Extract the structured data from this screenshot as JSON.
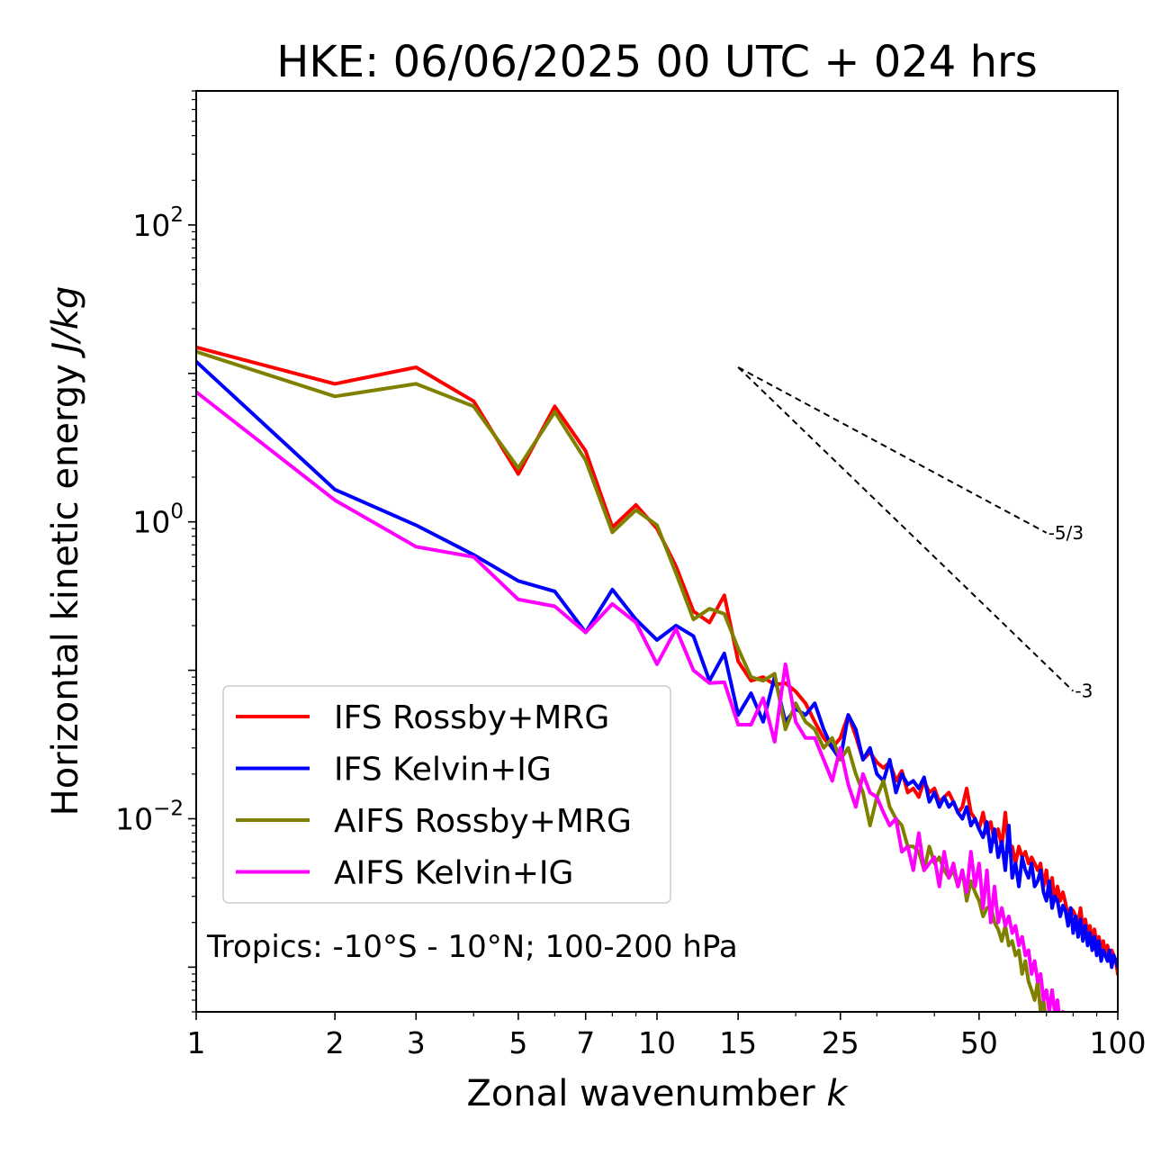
{
  "chart_data": {
    "type": "line",
    "title": "HKE: 06/06/2025 00 UTC + 024 hrs",
    "xlabel": "Zonal wavenumber",
    "xlabel_symbol": "k",
    "ylabel": "Horizontal kinetic energy",
    "ylabel_units": "J/kg",
    "x_scale": "log",
    "y_scale": "log",
    "xlim": [
      1,
      100
    ],
    "ylim": [
      0.0005,
      800
    ],
    "x_ticks": [
      1,
      2,
      3,
      5,
      7,
      10,
      15,
      25,
      50,
      100
    ],
    "x_tick_labels": [
      "1",
      "2",
      "3",
      "5",
      "7",
      "10",
      "15",
      "25",
      "50",
      "100"
    ],
    "y_ticks": [
      {
        "value": 100,
        "base": "10",
        "exp": "2"
      },
      {
        "value": 1,
        "base": "10",
        "exp": "0"
      },
      {
        "value": 0.01,
        "base": "10",
        "exp": "−2"
      }
    ],
    "grid": false,
    "legend_position": "lower-left",
    "annotation": "Tropics: -10°S - 10°N; 100-200 hPa",
    "reference_lines": [
      {
        "label": "-5/3",
        "slope": -1.6667,
        "x_start": 15,
        "y_start": 11,
        "x_end": 70
      },
      {
        "label": "-3",
        "slope": -3,
        "x_start": 15,
        "y_start": 11,
        "x_end": 80
      }
    ],
    "series": [
      {
        "name": "IFS Rossby+MRG",
        "color": "#ff0000",
        "x": [
          1,
          2,
          3,
          4,
          5,
          6,
          7,
          8,
          9,
          10,
          11,
          12,
          13,
          14,
          15,
          16,
          17,
          18,
          19,
          20,
          21,
          22,
          23,
          24,
          25,
          26,
          27,
          28,
          29,
          30,
          31,
          32,
          33,
          34,
          35,
          36,
          37,
          38,
          39,
          40,
          41,
          42,
          43,
          44,
          45,
          46,
          47,
          48,
          49,
          50,
          51,
          52,
          53,
          54,
          55,
          56,
          57,
          58,
          59,
          60,
          61,
          62,
          63,
          64,
          65,
          66,
          67,
          68,
          69,
          70,
          71,
          72,
          73,
          74,
          75,
          76,
          77,
          78,
          79,
          80,
          81,
          82,
          83,
          84,
          85,
          86,
          87,
          88,
          89,
          90,
          91,
          92,
          93,
          94,
          95,
          96,
          97,
          98,
          99,
          100
        ],
        "y": [
          15,
          8.5,
          11,
          6.5,
          2.1,
          6,
          3,
          0.92,
          1.3,
          0.9,
          0.5,
          0.25,
          0.21,
          0.32,
          0.115,
          0.085,
          0.09,
          0.08,
          0.082,
          0.072,
          0.06,
          0.045,
          0.035,
          0.03,
          0.035,
          0.05,
          0.036,
          0.025,
          0.028,
          0.024,
          0.022,
          0.024,
          0.018,
          0.021,
          0.015,
          0.016,
          0.014,
          0.018,
          0.015,
          0.016,
          0.013,
          0.014,
          0.015,
          0.013,
          0.011,
          0.012,
          0.016,
          0.011,
          0.01,
          0.0085,
          0.011,
          0.008,
          0.0095,
          0.007,
          0.0085,
          0.0065,
          0.011,
          0.006,
          0.0065,
          0.005,
          0.0065,
          0.0055,
          0.006,
          0.005,
          0.0055,
          0.005,
          0.0045,
          0.005,
          0.0035,
          0.0045,
          0.003,
          0.004,
          0.0028,
          0.0035,
          0.0028,
          0.0032,
          0.0027,
          0.0022,
          0.0025,
          0.0024,
          0.0022,
          0.002,
          0.0025,
          0.0018,
          0.0021,
          0.0017,
          0.0019,
          0.0015,
          0.0018,
          0.0014,
          0.0016,
          0.0013,
          0.0015,
          0.0012,
          0.0014,
          0.0011,
          0.0013,
          0.0012,
          0.0011,
          0.0009
        ]
      },
      {
        "name": "IFS Kelvin+IG",
        "color": "#0000ff",
        "x": [
          1,
          2,
          3,
          4,
          5,
          6,
          7,
          8,
          9,
          10,
          11,
          12,
          13,
          14,
          15,
          16,
          17,
          18,
          19,
          20,
          21,
          22,
          23,
          24,
          25,
          26,
          27,
          28,
          29,
          30,
          31,
          32,
          33,
          34,
          35,
          36,
          37,
          38,
          39,
          40,
          41,
          42,
          43,
          44,
          45,
          46,
          47,
          48,
          49,
          50,
          51,
          52,
          53,
          54,
          55,
          56,
          57,
          58,
          59,
          60,
          61,
          62,
          63,
          64,
          65,
          66,
          67,
          68,
          69,
          70,
          71,
          72,
          73,
          74,
          75,
          76,
          77,
          78,
          79,
          80,
          81,
          82,
          83,
          84,
          85,
          86,
          87,
          88,
          89,
          90,
          91,
          92,
          93,
          94,
          95,
          96,
          97,
          98,
          99,
          100
        ],
        "y": [
          12,
          1.65,
          0.95,
          0.6,
          0.4,
          0.34,
          0.18,
          0.35,
          0.22,
          0.16,
          0.2,
          0.17,
          0.085,
          0.13,
          0.05,
          0.07,
          0.045,
          0.09,
          0.045,
          0.055,
          0.05,
          0.06,
          0.04,
          0.03,
          0.025,
          0.05,
          0.04,
          0.025,
          0.03,
          0.02,
          0.018,
          0.025,
          0.015,
          0.02,
          0.017,
          0.018,
          0.016,
          0.019,
          0.013,
          0.015,
          0.012,
          0.014,
          0.012,
          0.013,
          0.011,
          0.01,
          0.012,
          0.009,
          0.01,
          0.0085,
          0.0075,
          0.0095,
          0.006,
          0.0085,
          0.0055,
          0.007,
          0.0045,
          0.009,
          0.004,
          0.005,
          0.0035,
          0.0055,
          0.0045,
          0.004,
          0.005,
          0.0035,
          0.0038,
          0.0045,
          0.0032,
          0.0028,
          0.0038,
          0.0025,
          0.003,
          0.0028,
          0.0022,
          0.0026,
          0.0024,
          0.0019,
          0.0025,
          0.0017,
          0.0022,
          0.0016,
          0.0021,
          0.0015,
          0.0019,
          0.0014,
          0.0017,
          0.0013,
          0.0016,
          0.0012,
          0.0015,
          0.0011,
          0.0013,
          0.0012,
          0.0011,
          0.0013,
          0.001,
          0.0012,
          0.0011,
          0.001
        ]
      },
      {
        "name": "AIFS Rossby+MRG",
        "color": "#808000",
        "x": [
          1,
          2,
          3,
          4,
          5,
          6,
          7,
          8,
          9,
          10,
          11,
          12,
          13,
          14,
          15,
          16,
          17,
          18,
          19,
          20,
          21,
          22,
          23,
          24,
          25,
          26,
          27,
          28,
          29,
          30,
          31,
          32,
          33,
          34,
          35,
          36,
          37,
          38,
          39,
          40,
          41,
          42,
          43,
          44,
          45,
          46,
          47,
          48,
          49,
          50,
          51,
          52,
          53,
          54,
          55,
          56,
          57,
          58,
          59,
          60,
          61,
          62,
          63,
          64,
          65,
          66,
          67,
          68,
          69,
          70,
          71,
          72,
          73,
          74,
          75
        ],
        "y": [
          14,
          7,
          8.5,
          6,
          2.3,
          5.5,
          2.6,
          0.85,
          1.2,
          0.95,
          0.45,
          0.22,
          0.26,
          0.24,
          0.14,
          0.09,
          0.085,
          0.095,
          0.04,
          0.06,
          0.045,
          0.04,
          0.03,
          0.035,
          0.025,
          0.03,
          0.02,
          0.015,
          0.009,
          0.014,
          0.018,
          0.012,
          0.01,
          0.009,
          0.0065,
          0.0065,
          0.006,
          0.0045,
          0.0065,
          0.005,
          0.0055,
          0.0045,
          0.004,
          0.0045,
          0.0035,
          0.0045,
          0.0028,
          0.0038,
          0.0032,
          0.0028,
          0.0022,
          0.0025,
          0.0026,
          0.002,
          0.0018,
          0.0015,
          0.0019,
          0.0014,
          0.0015,
          0.0012,
          0.0013,
          0.0009,
          0.0011,
          0.0008,
          0.0007,
          0.0006,
          0.0008,
          0.0005,
          0.0006,
          0.0004,
          0.0005,
          0.0004,
          0.0004,
          0.0003,
          0.0004
        ]
      },
      {
        "name": "AIFS Kelvin+IG",
        "color": "#ff00ff",
        "x": [
          1,
          2,
          3,
          4,
          5,
          6,
          7,
          8,
          9,
          10,
          11,
          12,
          13,
          14,
          15,
          16,
          17,
          18,
          19,
          20,
          21,
          22,
          23,
          24,
          25,
          26,
          27,
          28,
          29,
          30,
          31,
          32,
          33,
          34,
          35,
          36,
          37,
          38,
          39,
          40,
          41,
          42,
          43,
          44,
          45,
          46,
          47,
          48,
          49,
          50,
          51,
          52,
          53,
          54,
          55,
          56,
          57,
          58,
          59,
          60,
          61,
          62,
          63,
          64,
          65,
          66,
          67,
          68,
          69,
          70,
          71,
          72,
          73,
          74,
          75,
          76,
          77
        ],
        "y": [
          7.5,
          1.4,
          0.68,
          0.58,
          0.3,
          0.27,
          0.18,
          0.28,
          0.21,
          0.11,
          0.19,
          0.1,
          0.082,
          0.083,
          0.043,
          0.043,
          0.065,
          0.033,
          0.11,
          0.045,
          0.035,
          0.035,
          0.025,
          0.018,
          0.03,
          0.017,
          0.012,
          0.02,
          0.015,
          0.014,
          0.011,
          0.009,
          0.01,
          0.006,
          0.0065,
          0.0045,
          0.008,
          0.0045,
          0.005,
          0.0055,
          0.0035,
          0.006,
          0.004,
          0.005,
          0.0035,
          0.0045,
          0.0032,
          0.006,
          0.0035,
          0.005,
          0.0025,
          0.0045,
          0.002,
          0.0035,
          0.002,
          0.0025,
          0.0019,
          0.0022,
          0.0017,
          0.0019,
          0.0014,
          0.0016,
          0.0012,
          0.0013,
          0.0009,
          0.0011,
          0.0008,
          0.0009,
          0.0006,
          0.0007,
          0.0005,
          0.0007,
          0.0005,
          0.0006,
          0.0004,
          0.0005,
          0.0004
        ]
      }
    ]
  }
}
